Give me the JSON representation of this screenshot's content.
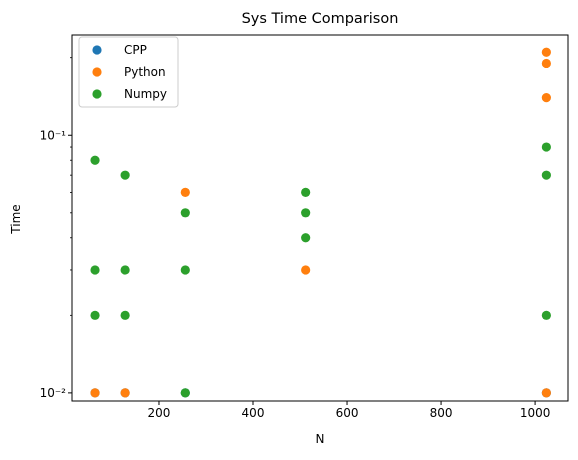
{
  "chart_data": {
    "type": "scatter",
    "title": "Sys Time Comparison",
    "xlabel": "N",
    "ylabel": "Time",
    "x_scale": "linear",
    "y_scale": "log",
    "xlim": [
      15,
      1070
    ],
    "ylim": [
      0.0093,
      0.245
    ],
    "x_ticks": [
      200,
      400,
      600,
      800,
      1000
    ],
    "x_tick_labels": [
      "200",
      "400",
      "600",
      "800",
      "1000"
    ],
    "y_ticks": [
      0.01,
      0.1
    ],
    "y_tick_labels": [
      "10⁻²",
      "10⁻¹"
    ],
    "grid": false,
    "legend_position": "top-left",
    "series": [
      {
        "name": "CPP",
        "color": "#1f77b4",
        "points": [
          [
            64,
            0.01
          ],
          [
            128,
            0.01
          ],
          [
            256,
            0.01
          ],
          [
            1024,
            0.01
          ]
        ]
      },
      {
        "name": "Python",
        "color": "#ff7f0e",
        "points": [
          [
            64,
            0.01
          ],
          [
            128,
            0.01
          ],
          [
            256,
            0.06
          ],
          [
            512,
            0.03
          ],
          [
            1024,
            0.21
          ],
          [
            1024,
            0.19
          ],
          [
            1024,
            0.14
          ],
          [
            1024,
            0.01
          ]
        ]
      },
      {
        "name": "Numpy",
        "color": "#2ca02c",
        "points": [
          [
            64,
            0.08
          ],
          [
            64,
            0.03
          ],
          [
            64,
            0.02
          ],
          [
            128,
            0.07
          ],
          [
            128,
            0.03
          ],
          [
            128,
            0.02
          ],
          [
            256,
            0.05
          ],
          [
            256,
            0.03
          ],
          [
            256,
            0.01
          ],
          [
            512,
            0.06
          ],
          [
            512,
            0.05
          ],
          [
            512,
            0.04
          ],
          [
            1024,
            0.09
          ],
          [
            1024,
            0.07
          ],
          [
            1024,
            0.02
          ]
        ]
      }
    ]
  }
}
